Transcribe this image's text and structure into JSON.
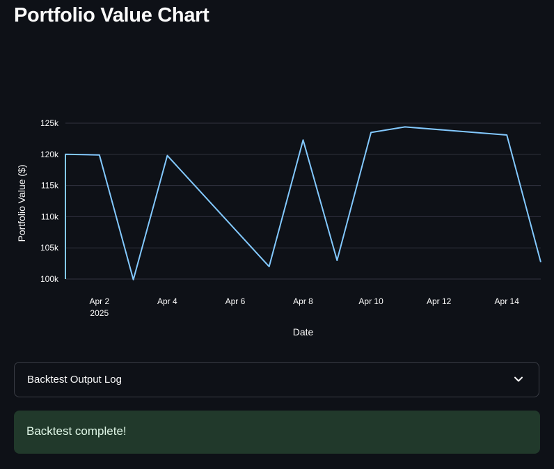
{
  "page": {
    "title": "Portfolio Value Chart"
  },
  "chart_data": {
    "type": "line",
    "title": "",
    "xlabel": "Date",
    "ylabel": "Portfolio Value ($)",
    "ylim": [
      100000,
      125000
    ],
    "xlim": [
      "2025-04-01",
      "2025-04-15"
    ],
    "y_ticks": [
      {
        "value": 100000,
        "label": "100k"
      },
      {
        "value": 105000,
        "label": "105k"
      },
      {
        "value": 110000,
        "label": "110k"
      },
      {
        "value": 115000,
        "label": "115k"
      },
      {
        "value": 120000,
        "label": "120k"
      },
      {
        "value": 125000,
        "label": "125k"
      }
    ],
    "x_ticks": [
      {
        "value": "2025-04-02",
        "label": "Apr 2",
        "sublabel": "2025"
      },
      {
        "value": "2025-04-04",
        "label": "Apr 4",
        "sublabel": ""
      },
      {
        "value": "2025-04-06",
        "label": "Apr 6",
        "sublabel": ""
      },
      {
        "value": "2025-04-08",
        "label": "Apr 8",
        "sublabel": ""
      },
      {
        "value": "2025-04-10",
        "label": "Apr 10",
        "sublabel": ""
      },
      {
        "value": "2025-04-12",
        "label": "Apr 12",
        "sublabel": ""
      },
      {
        "value": "2025-04-14",
        "label": "Apr 14",
        "sublabel": ""
      }
    ],
    "grid": "horizontal",
    "line_color": "#83c9ff",
    "series": [
      {
        "points": [
          {
            "x": "2025-04-01",
            "y": 100000
          },
          {
            "x": "2025-04-01",
            "y": 120000
          },
          {
            "x": "2025-04-02",
            "y": 119900
          },
          {
            "x": "2025-04-03",
            "y": 99900
          },
          {
            "x": "2025-04-04",
            "y": 119800
          },
          {
            "x": "2025-04-07",
            "y": 102000
          },
          {
            "x": "2025-04-08",
            "y": 122300
          },
          {
            "x": "2025-04-09",
            "y": 103000
          },
          {
            "x": "2025-04-10",
            "y": 123500
          },
          {
            "x": "2025-04-11",
            "y": 124400
          },
          {
            "x": "2025-04-14",
            "y": 123100
          },
          {
            "x": "2025-04-15",
            "y": 102700
          }
        ]
      }
    ]
  },
  "expander": {
    "label": "Backtest Output Log",
    "icon": "chevron-down-icon"
  },
  "alert": {
    "text": "Backtest complete!",
    "background": "#21392b"
  },
  "colors": {
    "background": "#0e1117",
    "text": "#fafafa",
    "grid": "#31333f",
    "border": "#3b3e46"
  }
}
